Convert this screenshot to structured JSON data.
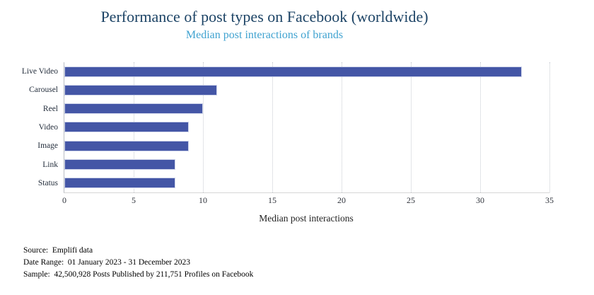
{
  "title": "Performance of post types on Facebook (worldwide)",
  "subtitle": "Median post interactions of brands",
  "colors": {
    "title_text": "#1d4466",
    "subtitle_text": "#3fa2d0",
    "bar_fill": "#4456a6",
    "bar_border": "#cdd3ea",
    "gridline": "#c6cad1",
    "axis_line": "#b9bdc4"
  },
  "chart_data": {
    "type": "bar",
    "orientation": "horizontal",
    "title": "Performance of post types on Facebook (worldwide)",
    "subtitle": "Median post interactions of brands",
    "categories": [
      "Live Video",
      "Carousel",
      "Reel",
      "Video",
      "Image",
      "Link",
      "Status"
    ],
    "values": [
      33,
      11,
      10,
      9,
      9,
      8,
      8
    ],
    "xlabel": "Median post interactions",
    "ylabel": "",
    "xlim": [
      0,
      35
    ],
    "xticks": [
      0,
      5,
      10,
      15,
      20,
      25,
      30,
      35
    ],
    "grid": "vertical-dotted",
    "legend": "none"
  },
  "footer": {
    "lines": [
      "Source:  Emplifi data",
      "Date Range:  01 January 2023 - 31 December 2023",
      "Sample:  42,500,928 Posts Published by 211,751 Profiles on Facebook"
    ]
  }
}
